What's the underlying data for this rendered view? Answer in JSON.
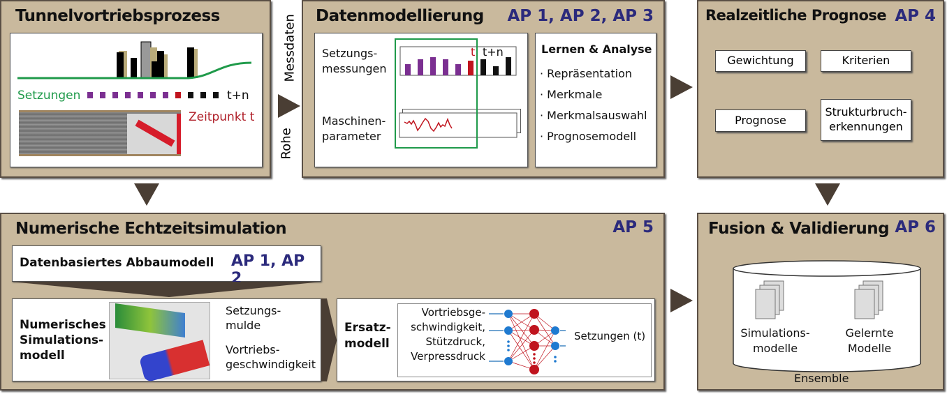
{
  "colors": {
    "panel": "#c9b99d",
    "ap": "#2b2a7c",
    "green": "#1f9a4a",
    "purple": "#7b2f91",
    "red": "#c0141e",
    "arrow": "#4a3e34"
  },
  "tunnel": {
    "title": "Tunnelvortriebsprozess",
    "setzungen": "Setzungen",
    "t_plus_n": "t+n",
    "zeitpunkt": "Zeitpunkt t"
  },
  "connector": {
    "rohe": "Rohe",
    "messdaten": "Messdaten"
  },
  "daten": {
    "title": "Datenmodellierung",
    "ap": "AP 1, AP 2, AP 3",
    "setzungs": "Setzungs-",
    "messungen": "messungen",
    "t": "t",
    "t_plus_n": "t+n",
    "maschinen": "Maschinen-",
    "parameter": "parameter",
    "lernen_title": "Lernen & Analyse",
    "lernen_items": [
      "· Repräsentation",
      "· Merkmale",
      "· Merkmalsauswahl",
      "· Prognosemodell"
    ]
  },
  "prognose": {
    "title": "Realzeitliche Prognose",
    "ap": "AP 4",
    "gewichtung": "Gewichtung",
    "kriterien": "Kriterien",
    "prognose": "Prognose",
    "struktur1": "Strukturbruch-",
    "struktur2": "erkennungen"
  },
  "numerisch": {
    "title": "Numerische Echtzeitsimulation",
    "ap": "AP 5",
    "abbau": "Datenbasiertes Abbaumodell",
    "abbau_ap": "AP 1, AP 2",
    "sim1": "Numerisches",
    "sim2": "Simulations-",
    "sim3": "modell",
    "mulde1": "Setzungs-",
    "mulde2": "mulde",
    "vor1": "Vortriebs-",
    "vor2": "geschwindigkeit",
    "ersatz1": "Ersatz-",
    "ersatz2": "modell",
    "in1": "Vortriebsge-",
    "in2": "schwindigkeit,",
    "in3": "Stützdruck,",
    "in4": "Verpressdruck",
    "out": "Setzungen (t)"
  },
  "fusion": {
    "title": "Fusion & Validierung",
    "ap": "AP 6",
    "sim1": "Simulations-",
    "sim2": "modelle",
    "gel1": "Gelernte",
    "gel2": "Modelle",
    "ensemble": "Ensemble"
  }
}
